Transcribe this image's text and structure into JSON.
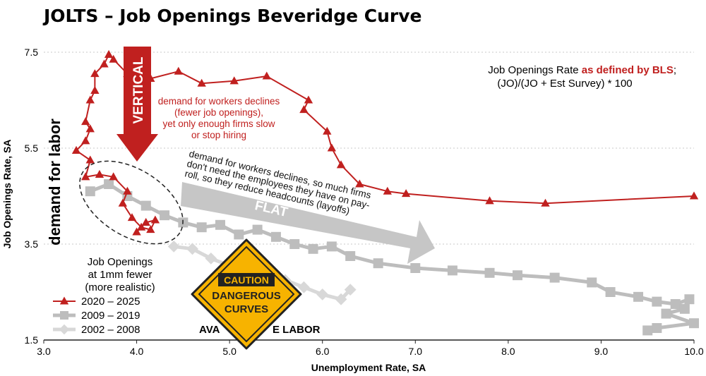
{
  "chart_data": {
    "type": "line",
    "title": "JOLTS – Job Openings Beveridge Curve",
    "xlabel": "Unemployment Rate, SA",
    "ylabel": "Job Openings Rate, SA",
    "xlim": [
      3.0,
      10.0
    ],
    "ylim": [
      1.5,
      7.7
    ],
    "xticks": [
      "3.0",
      "4.0",
      "5.0",
      "6.0",
      "7.0",
      "8.0",
      "9.0",
      "10.0"
    ],
    "yticks": [
      "1.5",
      "3.5",
      "5.5",
      "7.5"
    ],
    "grid": "horizontal dotted",
    "legend_position": "bottom-left",
    "series": [
      {
        "name": "2020 – 2025",
        "color": "#c0201f",
        "marker": "triangle",
        "points": [
          [
            4.0,
            3.75
          ],
          [
            4.1,
            3.95
          ],
          [
            4.2,
            4.0
          ],
          [
            4.15,
            3.8
          ],
          [
            4.05,
            3.85
          ],
          [
            3.95,
            4.05
          ],
          [
            3.85,
            4.35
          ],
          [
            3.9,
            4.6
          ],
          [
            3.75,
            4.9
          ],
          [
            3.6,
            4.95
          ],
          [
            3.45,
            4.9
          ],
          [
            3.5,
            5.25
          ],
          [
            3.35,
            5.45
          ],
          [
            3.45,
            5.65
          ],
          [
            3.5,
            5.9
          ],
          [
            3.45,
            6.05
          ],
          [
            3.5,
            6.5
          ],
          [
            3.55,
            6.7
          ],
          [
            3.55,
            7.05
          ],
          [
            3.65,
            7.25
          ],
          [
            3.7,
            7.45
          ],
          [
            3.75,
            7.35
          ],
          [
            3.9,
            7.05
          ],
          [
            3.95,
            6.95
          ],
          [
            4.15,
            6.95
          ],
          [
            4.45,
            7.1
          ],
          [
            4.7,
            6.85
          ],
          [
            5.05,
            6.9
          ],
          [
            5.4,
            7.0
          ],
          [
            5.85,
            6.5
          ],
          [
            5.8,
            6.3
          ],
          [
            6.05,
            5.85
          ],
          [
            6.1,
            5.5
          ],
          [
            6.2,
            5.15
          ],
          [
            6.4,
            4.75
          ],
          [
            6.7,
            4.6
          ],
          [
            6.9,
            4.55
          ],
          [
            7.8,
            4.4
          ],
          [
            8.4,
            4.35
          ],
          [
            10.0,
            4.5
          ]
        ]
      },
      {
        "name": "2009 – 2019",
        "color": "#bdbdbd",
        "marker": "square",
        "points": [
          [
            3.5,
            4.6
          ],
          [
            3.7,
            4.75
          ],
          [
            3.9,
            4.5
          ],
          [
            4.1,
            4.3
          ],
          [
            4.3,
            4.1
          ],
          [
            4.5,
            3.95
          ],
          [
            4.7,
            3.85
          ],
          [
            4.9,
            3.9
          ],
          [
            5.1,
            3.7
          ],
          [
            5.3,
            3.8
          ],
          [
            5.5,
            3.65
          ],
          [
            5.7,
            3.5
          ],
          [
            5.9,
            3.4
          ],
          [
            6.1,
            3.45
          ],
          [
            6.3,
            3.25
          ],
          [
            6.6,
            3.1
          ],
          [
            7.0,
            3.0
          ],
          [
            7.4,
            2.95
          ],
          [
            7.8,
            2.9
          ],
          [
            8.1,
            2.85
          ],
          [
            8.5,
            2.8
          ],
          [
            8.9,
            2.7
          ],
          [
            9.1,
            2.5
          ],
          [
            9.4,
            2.4
          ],
          [
            9.6,
            2.3
          ],
          [
            9.8,
            2.25
          ],
          [
            9.95,
            2.35
          ],
          [
            9.9,
            2.15
          ],
          [
            9.7,
            2.05
          ],
          [
            10.0,
            1.85
          ],
          [
            9.6,
            1.75
          ],
          [
            9.5,
            1.7
          ]
        ]
      },
      {
        "name": "2002 – 2008",
        "color": "#d8d8d8",
        "marker": "diamond",
        "points": [
          [
            4.4,
            3.45
          ],
          [
            4.6,
            3.4
          ],
          [
            4.8,
            3.2
          ],
          [
            5.0,
            3.05
          ],
          [
            5.2,
            2.95
          ],
          [
            5.4,
            2.85
          ],
          [
            5.6,
            2.75
          ],
          [
            5.8,
            2.6
          ],
          [
            6.0,
            2.45
          ],
          [
            6.2,
            2.35
          ],
          [
            6.3,
            2.55
          ]
        ]
      }
    ],
    "annotations": {
      "axis_side_label": "demand for labor",
      "bottom_label_left": "AVA",
      "bottom_label_right": "E   LABOR",
      "definition_prefix": "Job Openings Rate ",
      "definition_highlight": "as defined by BLS",
      "definition_suffix": ";",
      "definition_formula": "(JO)/(JO + Est Survey) * 100",
      "vertical_arrow_label": "VERTICAL",
      "vertical_text": [
        "demand for workers declines",
        "(fewer job openings),",
        "yet only enough firms slow",
        "or stop hiring"
      ],
      "flat_arrow_label": "FLAT",
      "flat_text": [
        "demand for workers declines, so much firms",
        "don't need the employees they have on pay-",
        "roll, so they reduce headcounts (layoffs)"
      ],
      "ellipse_text": [
        "Job Openings",
        "at 1mm fewer",
        "(more realistic)"
      ],
      "sign_top": "CAUTION",
      "sign_line1": "DANGEROUS",
      "sign_line2": "CURVES"
    }
  }
}
